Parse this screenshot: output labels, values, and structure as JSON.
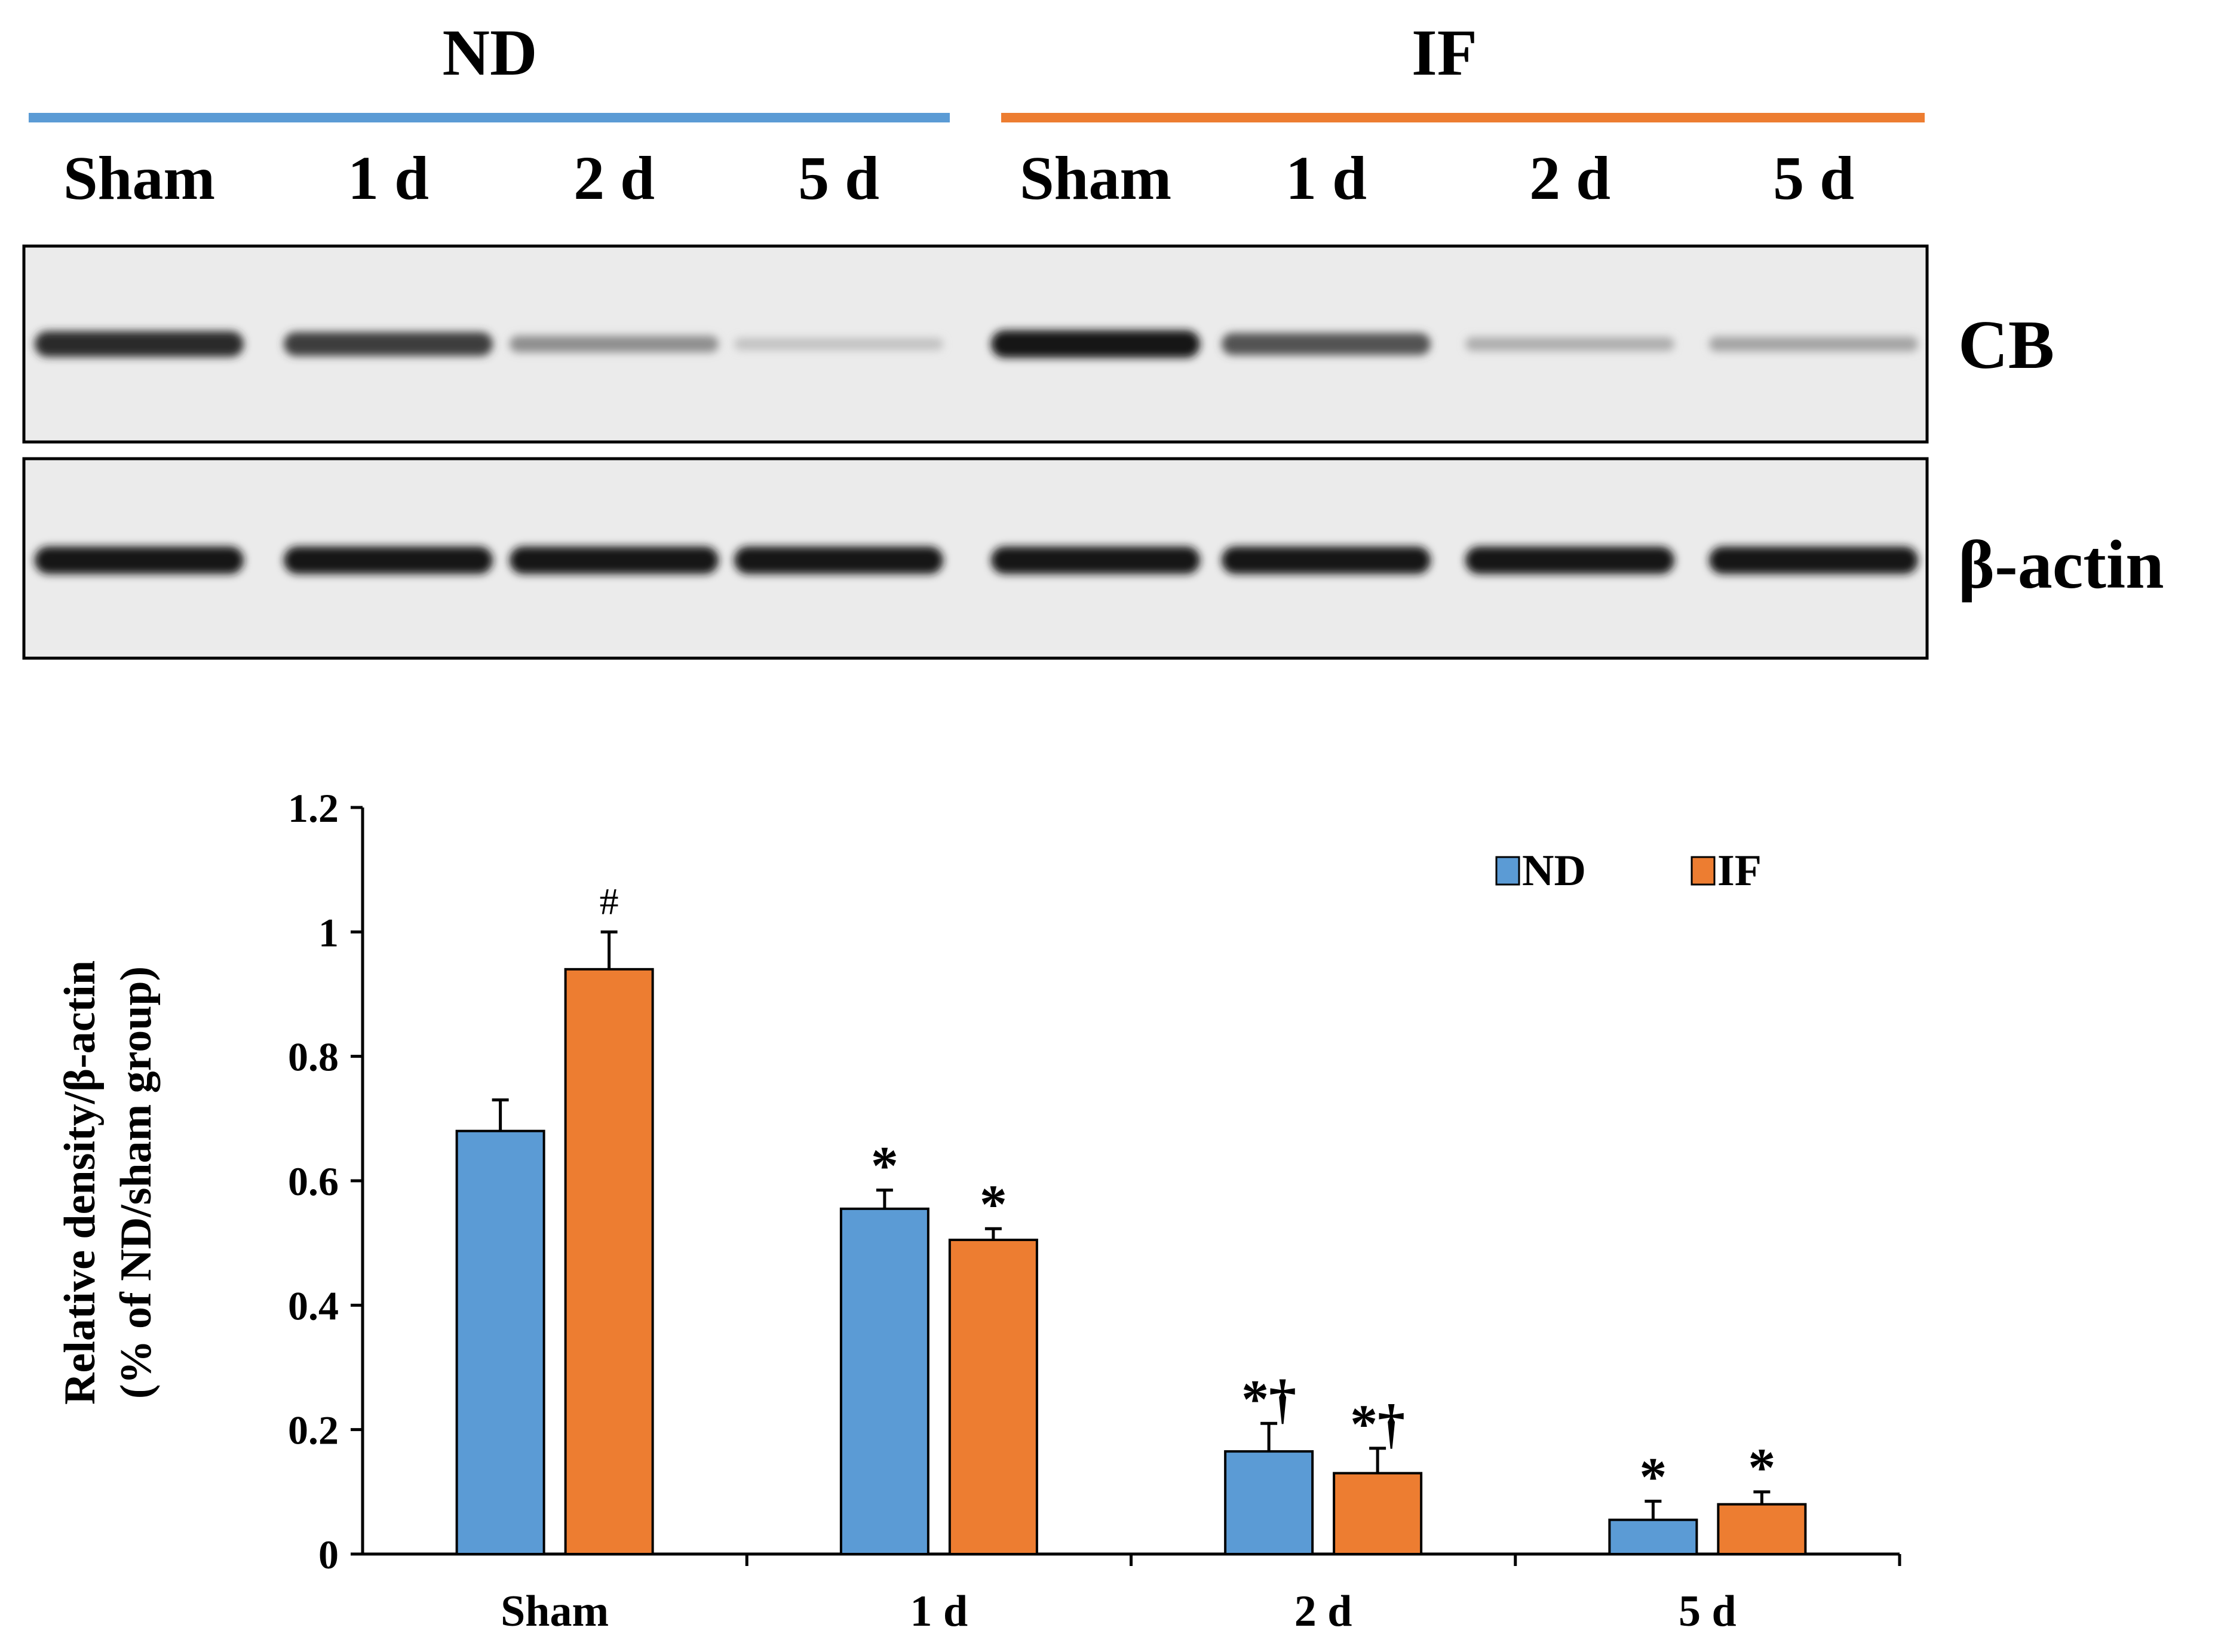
{
  "blot": {
    "groups": [
      {
        "label": "ND",
        "color": "#5B9BD5"
      },
      {
        "label": "IF",
        "color": "#ED7D31"
      }
    ],
    "lane_labels": [
      "Sham",
      "1 d",
      "2 d",
      "5 d",
      "Sham",
      "1 d",
      "2 d",
      "5 d"
    ],
    "rows": [
      {
        "label": "CB",
        "intensities": [
          0.9,
          0.8,
          0.4,
          0.15,
          1.0,
          0.7,
          0.25,
          0.3
        ]
      },
      {
        "label": "β-actin",
        "intensities": [
          1.0,
          1.0,
          1.0,
          1.0,
          1.0,
          1.0,
          1.0,
          1.0
        ]
      }
    ]
  },
  "chart_data": {
    "type": "bar",
    "categories": [
      "Sham",
      "1 d",
      "2 d",
      "5 d"
    ],
    "series": [
      {
        "name": "ND",
        "color": "#5B9BD5",
        "values": [
          0.68,
          0.555,
          0.165,
          0.055
        ],
        "errors": [
          0.05,
          0.03,
          0.045,
          0.03
        ],
        "annotations": [
          "",
          "*",
          "*†",
          "*"
        ]
      },
      {
        "name": "IF",
        "color": "#ED7D31",
        "values": [
          0.94,
          0.505,
          0.13,
          0.08
        ],
        "errors": [
          0.06,
          0.018,
          0.04,
          0.02
        ],
        "annotations": [
          "#",
          "*",
          "*†",
          "*"
        ]
      }
    ],
    "ylabel_lines": [
      "Relative density/β-actin",
      "(% of ND/sham group)"
    ],
    "ylim": [
      0,
      1.2
    ],
    "yticks": [
      "0",
      "0.2",
      "0.4",
      "0.6",
      "0.8",
      "1",
      "1.2"
    ],
    "legend_position": "top-right",
    "grid": false
  }
}
